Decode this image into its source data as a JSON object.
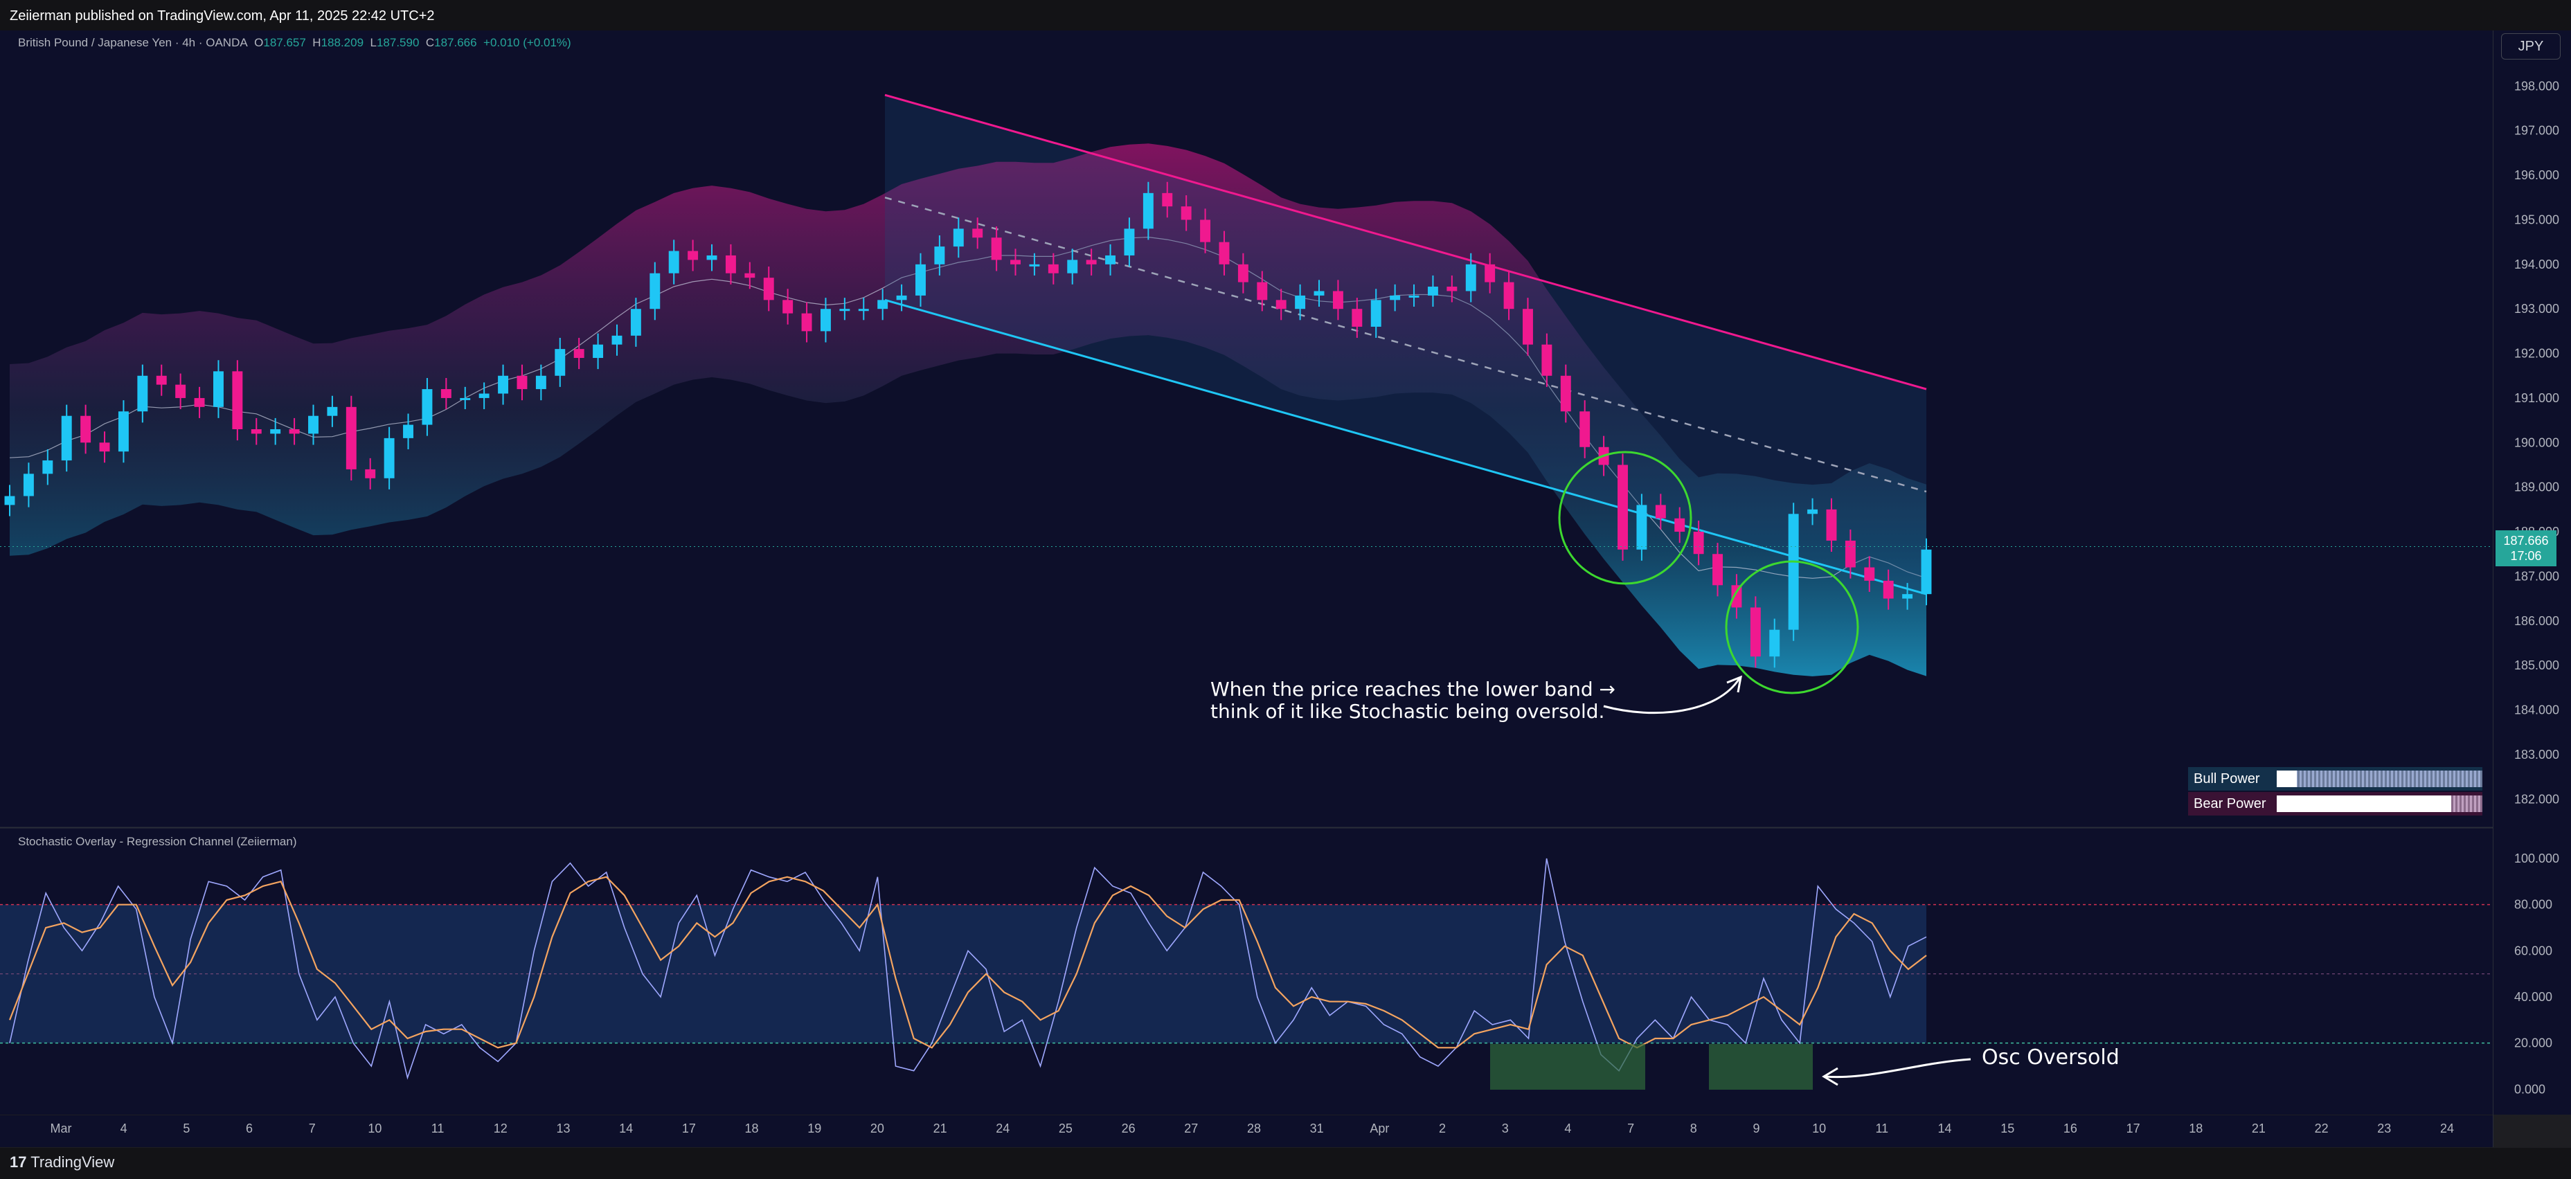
{
  "header": {
    "publisher": "Zeiierman published on TradingView.com, Apr 11, 2025 22:42 UTC+2"
  },
  "symbol": {
    "name": "British Pound / Japanese Yen · 4h · OANDA",
    "open_label": "O",
    "open": "187.657",
    "high_label": "H",
    "high": "188.209",
    "low_label": "L",
    "low": "187.590",
    "close_label": "C",
    "close": "187.666",
    "change": "+0.010 (+0.01%)"
  },
  "currency_button": "JPY",
  "last_price": {
    "value": "187.666",
    "countdown": "17:06"
  },
  "indicator_title": "Stochastic Overlay - Regression Channel (Zeiierman)",
  "power_table": {
    "bull_label": "Bull Power",
    "bull_fraction": 0.1,
    "bear_label": "Bear Power",
    "bear_fraction": 0.85
  },
  "annotations": {
    "band_line1": "When the price reaches the lower band →",
    "band_line2": "think of it like Stochastic being oversold.",
    "osc_label": "Osc Oversold"
  },
  "footer": {
    "brand": "TradingView"
  },
  "colors": {
    "bull": "#1fc6f5",
    "bear": "#f0198f",
    "highlight": "#3dd82f",
    "background": "#0d0f2a"
  },
  "chart_data": [
    {
      "type": "candlestick",
      "title": "British Pound / Japanese Yen · 4h · OANDA",
      "y_ticks": [
        "198.000",
        "197.000",
        "196.000",
        "195.000",
        "194.000",
        "193.000",
        "192.000",
        "191.000",
        "190.000",
        "189.000",
        "188.000",
        "187.000",
        "186.000",
        "185.000",
        "184.000",
        "183.000",
        "182.000"
      ],
      "ylim": [
        181.6,
        199.0
      ],
      "x_ticks": [
        "Mar",
        "4",
        "5",
        "6",
        "7",
        "10",
        "11",
        "12",
        "13",
        "14",
        "17",
        "18",
        "19",
        "20",
        "21",
        "24",
        "25",
        "26",
        "27",
        "28",
        "31",
        "Apr",
        "2",
        "3",
        "4",
        "7",
        "8",
        "9",
        "10",
        "11",
        "14",
        "15",
        "16",
        "17",
        "18",
        "21",
        "22",
        "23",
        "24"
      ],
      "close_series": [
        188.8,
        189.3,
        189.6,
        190.6,
        190.0,
        189.8,
        190.7,
        191.5,
        191.3,
        191.0,
        190.8,
        191.6,
        190.3,
        190.2,
        190.3,
        190.2,
        190.6,
        190.8,
        189.4,
        189.2,
        190.1,
        190.4,
        191.2,
        191.0,
        191.0,
        191.1,
        191.5,
        191.2,
        191.5,
        192.1,
        191.9,
        192.2,
        192.4,
        193.0,
        193.8,
        194.3,
        194.1,
        194.2,
        193.8,
        193.7,
        193.2,
        192.9,
        192.5,
        193.0,
        193.0,
        193.0,
        193.2,
        193.3,
        194.0,
        194.4,
        194.8,
        194.6,
        194.1,
        194.0,
        194.0,
        193.8,
        194.1,
        194.0,
        194.2,
        194.8,
        195.6,
        195.3,
        195.0,
        194.5,
        194.0,
        193.6,
        193.2,
        193.0,
        193.3,
        193.4,
        193.0,
        192.6,
        193.2,
        193.3,
        193.3,
        193.5,
        193.4,
        194.0,
        193.6,
        193.0,
        192.2,
        191.5,
        190.7,
        189.9,
        189.5,
        187.6,
        188.6,
        188.3,
        188.0,
        187.5,
        186.8,
        186.3,
        185.2,
        185.8,
        188.4,
        188.5,
        187.8,
        187.2,
        186.9,
        186.5,
        186.6,
        187.6
      ],
      "upper_channel": [
        197.8,
        191.2
      ],
      "mid_channel": [
        195.5,
        188.9
      ],
      "lower_channel": [
        193.2,
        186.6
      ],
      "extra_ticks": {
        "low_marks": [
          186.2,
          184.4
        ]
      }
    },
    {
      "type": "line",
      "title": "Stochastic Overlay - Regression Channel (Zeiierman)",
      "y_ticks": [
        "100.000",
        "80.000",
        "60.000",
        "40.000",
        "20.000",
        "0.000"
      ],
      "ylim": [
        -8,
        106
      ],
      "levels": {
        "overbought": 80,
        "mid": 50,
        "oversold": 20
      },
      "series": [
        {
          "values": [
            20,
            55,
            85,
            70,
            60,
            72,
            88,
            78,
            40,
            20,
            65,
            90,
            88,
            82,
            92,
            95,
            50,
            30,
            40,
            20,
            10,
            38,
            5,
            28,
            24,
            28,
            18,
            12,
            20,
            60,
            90,
            98,
            88,
            94,
            70,
            50,
            40,
            72,
            84,
            58,
            78,
            95,
            92,
            90,
            94,
            82,
            72,
            60,
            92,
            10,
            8,
            20,
            40,
            60,
            52,
            25,
            30,
            10,
            38,
            70,
            96,
            88,
            85,
            72,
            60,
            70,
            94,
            88,
            80,
            40,
            20,
            30,
            44,
            32,
            38,
            36,
            28,
            24,
            14,
            10,
            18,
            34,
            28,
            30,
            22,
            100,
            64,
            38,
            15,
            8,
            22,
            30,
            22,
            40,
            30,
            28,
            20,
            48,
            30,
            20,
            88,
            78,
            72,
            64,
            40,
            62,
            66
          ],
          "color": "#9fa8ff"
        },
        {
          "values": [
            30,
            50,
            70,
            72,
            68,
            70,
            80,
            80,
            62,
            45,
            55,
            72,
            82,
            84,
            88,
            90,
            72,
            52,
            46,
            36,
            26,
            30,
            22,
            25,
            26,
            26,
            22,
            18,
            20,
            40,
            66,
            85,
            90,
            92,
            84,
            70,
            56,
            62,
            72,
            66,
            72,
            85,
            90,
            92,
            90,
            86,
            78,
            70,
            80,
            48,
            22,
            18,
            28,
            42,
            50,
            42,
            38,
            30,
            34,
            50,
            72,
            84,
            88,
            84,
            75,
            70,
            78,
            82,
            82,
            64,
            44,
            36,
            40,
            38,
            38,
            37,
            34,
            30,
            24,
            18,
            18,
            24,
            26,
            28,
            26,
            54,
            62,
            58,
            40,
            22,
            18,
            22,
            22,
            28,
            30,
            32,
            36,
            40,
            34,
            28,
            44,
            66,
            76,
            72,
            60,
            52,
            58
          ],
          "color": "#f4a460"
        }
      ]
    }
  ]
}
